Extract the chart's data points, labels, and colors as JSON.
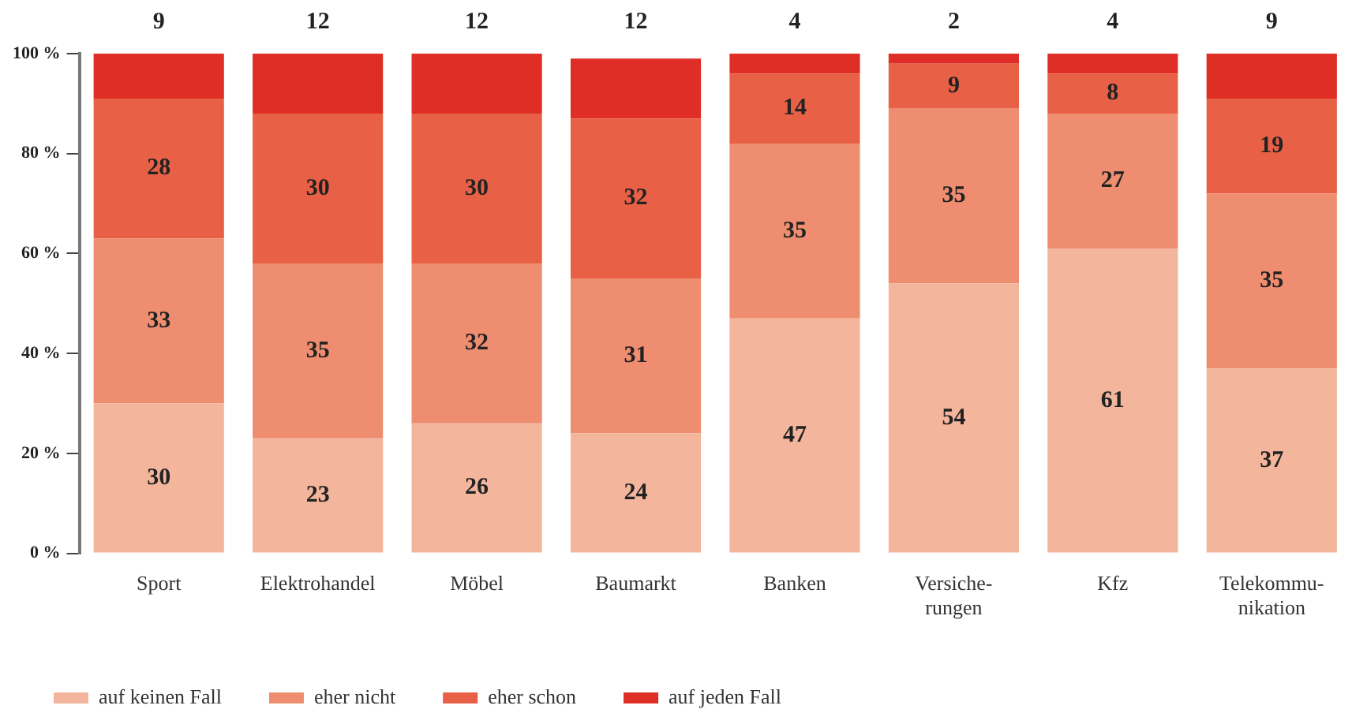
{
  "chart_data": {
    "type": "bar",
    "stacked": true,
    "data_labels": true,
    "grid": false,
    "legend": "bottom left",
    "categories": [
      "Sport",
      "Elektrohandel",
      "Möbel",
      "Baumarkt",
      "Banken",
      "Versiche-\nrungen",
      "Kfz",
      "Telekommu-\nnikation"
    ],
    "ylim": [
      0,
      100
    ],
    "yticks": [
      {
        "value": 0,
        "label": "0 %"
      },
      {
        "value": 20,
        "label": "20 %"
      },
      {
        "value": 40,
        "label": "40 %"
      },
      {
        "value": 60,
        "label": "60 %"
      },
      {
        "value": 80,
        "label": "80 %"
      },
      {
        "value": 100,
        "label": "100 %"
      }
    ],
    "series": [
      {
        "name": "auf keinen Fall",
        "color": "#f3b59c",
        "values": [
          30,
          23,
          26,
          24,
          47,
          54,
          61,
          37
        ]
      },
      {
        "name": "eher nicht",
        "color": "#ee8d6f",
        "values": [
          33,
          35,
          32,
          31,
          35,
          35,
          27,
          35
        ]
      },
      {
        "name": "eher schon",
        "color": "#e86045",
        "values": [
          28,
          30,
          30,
          32,
          14,
          9,
          8,
          19
        ]
      },
      {
        "name": "auf jeden Fall",
        "color": "#de2e26",
        "values": [
          9,
          12,
          12,
          12,
          4,
          2,
          4,
          9
        ]
      }
    ]
  }
}
